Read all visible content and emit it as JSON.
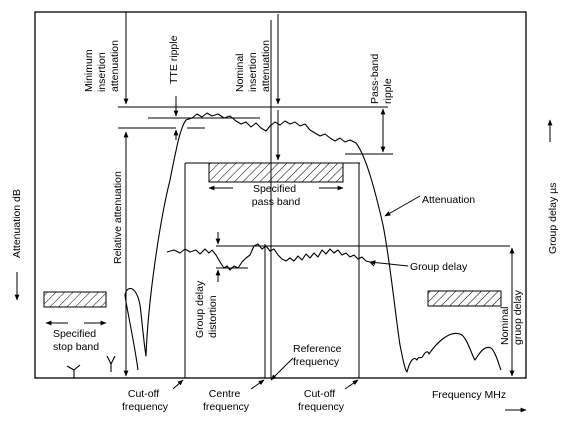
{
  "labels": {
    "attenuation_axis": "Attenuation  dB",
    "group_delay_axis": "Group delay   µs",
    "frequency_axis": "Frequency   MHz",
    "minimum_insertion_attenuation": [
      "Minimum",
      "insertion",
      "attenuation"
    ],
    "tte_ripple": "TTE ripple",
    "nominal_insertion_attenuation": [
      "Nominal",
      "insertion",
      "attenuation"
    ],
    "pass_band_ripple": [
      "Pass-band",
      "ripple"
    ],
    "relative_attenuation": "Relative attenuation",
    "specified_pass_band": [
      "Specified",
      "pass band"
    ],
    "attenuation_curve": "Attenuation",
    "group_delay_curve": "Group delay",
    "group_delay_distortion": [
      "Group delay",
      "distortion"
    ],
    "nominal_group_delay": [
      "Nominal",
      "gruop delay"
    ],
    "specified_stop_band": [
      "Specified",
      "stop band"
    ],
    "reference_frequency": [
      "Reference",
      "frequency"
    ],
    "cutoff_frequency_left": [
      "Cut-off",
      "frequency"
    ],
    "centre_frequency": [
      "Centre",
      "frequency"
    ],
    "cutoff_frequency_right": [
      "Cut-off",
      "frequency"
    ]
  }
}
